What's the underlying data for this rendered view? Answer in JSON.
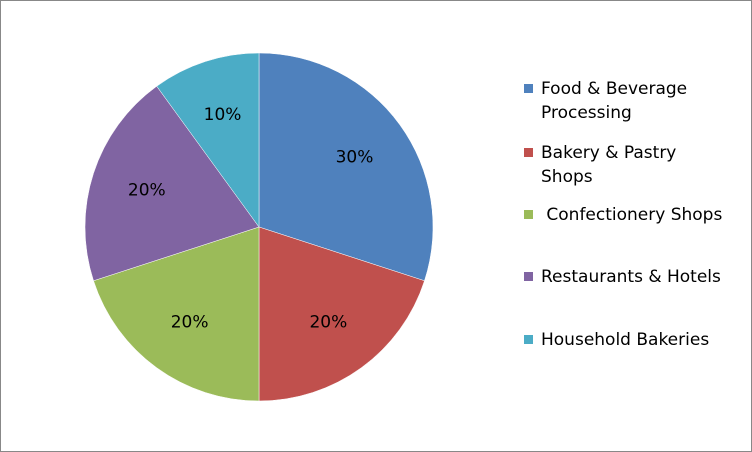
{
  "chart_data": {
    "type": "pie",
    "title": "",
    "categories": [
      "Food & Beverage Processing",
      "Bakery & Pastry Shops",
      " Confectionery Shops",
      "Restaurants & Hotels",
      "Household Bakeries"
    ],
    "values": [
      30,
      20,
      20,
      20,
      10
    ],
    "data_labels": [
      "30%",
      "20%",
      "20%",
      "20%",
      "10%"
    ],
    "colors": [
      "#4F81BD",
      "#C0504D",
      "#9BBB59",
      "#8064A2",
      "#4BACC6"
    ],
    "legend": "right",
    "start_angle": "12 o'clock",
    "direction": "clockwise"
  }
}
